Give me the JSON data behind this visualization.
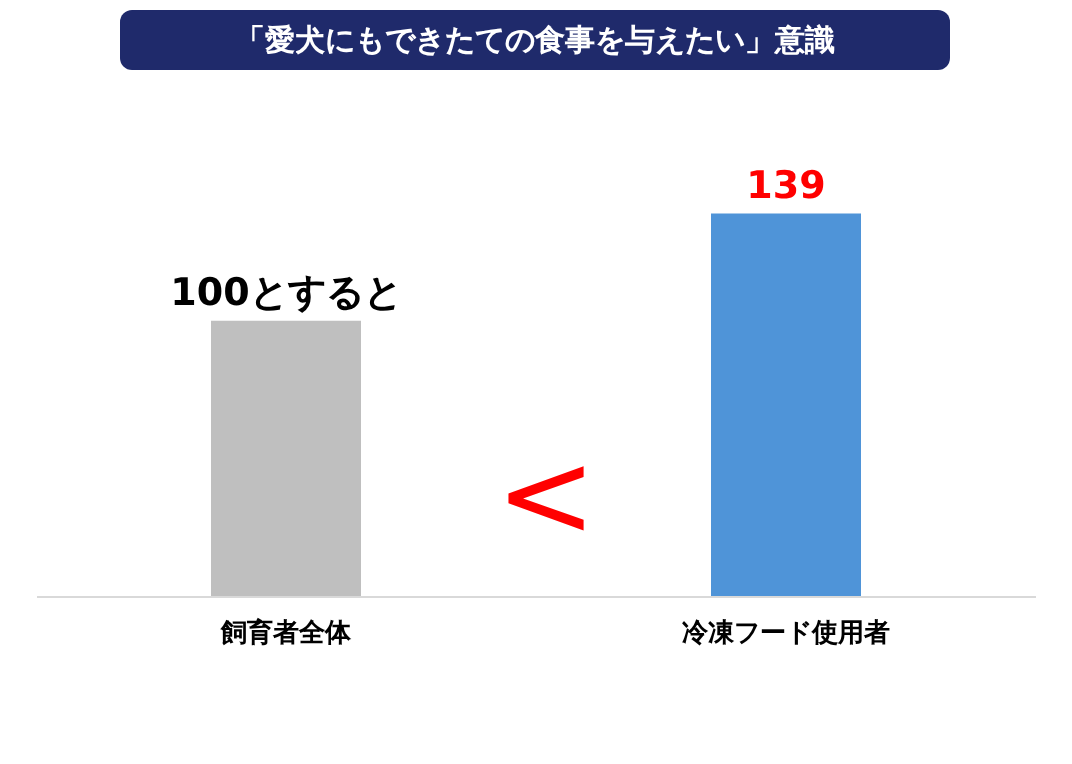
{
  "chart_data": {
    "type": "bar",
    "title": "「愛犬にもできたての食事を与えたい」意識",
    "categories": [
      "飼育者全体",
      "冷凍フード使用者"
    ],
    "values": [
      100,
      139
    ],
    "colors": [
      "#bfbfbf",
      "#4f94d8"
    ],
    "value_labels": [
      "100とすると",
      "139"
    ],
    "annotations": [
      "<"
    ],
    "grid": false
  }
}
